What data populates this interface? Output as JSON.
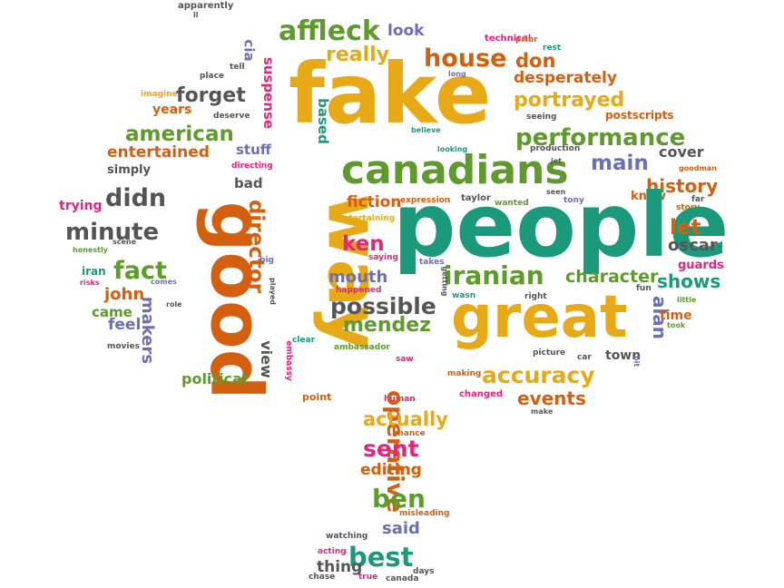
{
  "colors": {
    "yellow": "#e8a917",
    "orange": "#d4600f",
    "green": "#5e9b2c",
    "teal": "#1a9a7a",
    "gray": "#555555",
    "purple": "#6b6fb3",
    "pink": "#e0267d",
    "lightorange": "#f08a24"
  },
  "words": [
    {
      "text": "apparently",
      "color": "gray"
    },
    {
      "text": "ll",
      "color": "gray"
    },
    {
      "text": "affleck",
      "color": "green"
    },
    {
      "text": "look",
      "color": "purple"
    },
    {
      "text": "technical",
      "color": "pink"
    },
    {
      "text": "prior",
      "color": "orange"
    },
    {
      "text": "rest",
      "color": "teal"
    },
    {
      "text": "cia",
      "color": "purple"
    },
    {
      "text": "fake",
      "color": "yellow"
    },
    {
      "text": "really",
      "color": "yellow"
    },
    {
      "text": "house",
      "color": "orange"
    },
    {
      "text": "don",
      "color": "orange"
    },
    {
      "text": "desperately",
      "color": "orange"
    },
    {
      "text": "place",
      "color": "gray"
    },
    {
      "text": "tell",
      "color": "gray"
    },
    {
      "text": "long",
      "color": "purple"
    },
    {
      "text": "imagine",
      "color": "yellow"
    },
    {
      "text": "forget",
      "color": "gray"
    },
    {
      "text": "suspense",
      "color": "pink"
    },
    {
      "text": "portrayed",
      "color": "yellow"
    },
    {
      "text": "years",
      "color": "orange"
    },
    {
      "text": "deserve",
      "color": "gray"
    },
    {
      "text": "seeing",
      "color": "gray"
    },
    {
      "text": "postscripts",
      "color": "orange"
    },
    {
      "text": "american",
      "color": "green"
    },
    {
      "text": "performance",
      "color": "green"
    },
    {
      "text": "based",
      "color": "teal"
    },
    {
      "text": "stuff",
      "color": "purple"
    },
    {
      "text": "believe",
      "color": "teal"
    },
    {
      "text": "looking",
      "color": "teal"
    },
    {
      "text": "production",
      "color": "gray"
    },
    {
      "text": "cover",
      "color": "gray"
    },
    {
      "text": "entertained",
      "color": "orange"
    },
    {
      "text": "canadians",
      "color": "green"
    },
    {
      "text": "main",
      "color": "purple"
    },
    {
      "text": "simply",
      "color": "gray"
    },
    {
      "text": "directing",
      "color": "pink"
    },
    {
      "text": "jet",
      "color": "gray"
    },
    {
      "text": "goodman",
      "color": "orange"
    },
    {
      "text": "good",
      "color": "orange"
    },
    {
      "text": "way",
      "color": "yellow"
    },
    {
      "text": "bad",
      "color": "gray"
    },
    {
      "text": "history",
      "color": "orange"
    },
    {
      "text": "didn",
      "color": "gray"
    },
    {
      "text": "fiction",
      "color": "orange"
    },
    {
      "text": "expression",
      "color": "orange"
    },
    {
      "text": "taylor",
      "color": "gray"
    },
    {
      "text": "wanted",
      "color": "green"
    },
    {
      "text": "seen",
      "color": "gray"
    },
    {
      "text": "tony",
      "color": "purple"
    },
    {
      "text": "know",
      "color": "orange"
    },
    {
      "text": "far",
      "color": "gray"
    },
    {
      "text": "trying",
      "color": "pink"
    },
    {
      "text": "story",
      "color": "orange"
    },
    {
      "text": "director",
      "color": "orange"
    },
    {
      "text": "entertaining",
      "color": "yellow"
    },
    {
      "text": "minute",
      "color": "gray"
    },
    {
      "text": "people",
      "color": "teal"
    },
    {
      "text": "let",
      "color": "orange"
    },
    {
      "text": "oscar",
      "color": "gray"
    },
    {
      "text": "honestly",
      "color": "green"
    },
    {
      "text": "scene",
      "color": "gray"
    },
    {
      "text": "ken",
      "color": "pink"
    },
    {
      "text": "saying",
      "color": "pink"
    },
    {
      "text": "iran",
      "color": "teal"
    },
    {
      "text": "big",
      "color": "purple"
    },
    {
      "text": "fact",
      "color": "green"
    },
    {
      "text": "takes",
      "color": "purple"
    },
    {
      "text": "guards",
      "color": "pink"
    },
    {
      "text": "risks",
      "color": "pink"
    },
    {
      "text": "comes",
      "color": "purple"
    },
    {
      "text": "iranian",
      "color": "green"
    },
    {
      "text": "character",
      "color": "green"
    },
    {
      "text": "shows",
      "color": "teal"
    },
    {
      "text": "mouth",
      "color": "purple"
    },
    {
      "text": "getting",
      "color": "gray"
    },
    {
      "text": "john",
      "color": "orange"
    },
    {
      "text": "fun",
      "color": "gray"
    },
    {
      "text": "happened",
      "color": "pink"
    },
    {
      "text": "wasn",
      "color": "teal"
    },
    {
      "text": "right",
      "color": "gray"
    },
    {
      "text": "played",
      "color": "gray"
    },
    {
      "text": "little",
      "color": "green"
    },
    {
      "text": "role",
      "color": "gray"
    },
    {
      "text": "possible",
      "color": "gray"
    },
    {
      "text": "came",
      "color": "green"
    },
    {
      "text": "alan",
      "color": "purple"
    },
    {
      "text": "time",
      "color": "orange"
    },
    {
      "text": "great",
      "color": "yellow"
    },
    {
      "text": "mendez",
      "color": "green"
    },
    {
      "text": "took",
      "color": "green"
    },
    {
      "text": "feel",
      "color": "purple"
    },
    {
      "text": "makers",
      "color": "purple"
    },
    {
      "text": "clear",
      "color": "teal"
    },
    {
      "text": "ambassador",
      "color": "green"
    },
    {
      "text": "movies",
      "color": "gray"
    },
    {
      "text": "view",
      "color": "gray"
    },
    {
      "text": "picture",
      "color": "gray"
    },
    {
      "text": "car",
      "color": "gray"
    },
    {
      "text": "town",
      "color": "gray"
    },
    {
      "text": "embassy",
      "color": "pink"
    },
    {
      "text": "saw",
      "color": "pink"
    },
    {
      "text": "bit",
      "color": "purple"
    },
    {
      "text": "political",
      "color": "green"
    },
    {
      "text": "accuracy",
      "color": "yellow"
    },
    {
      "text": "making",
      "color": "orange"
    },
    {
      "text": "point",
      "color": "orange"
    },
    {
      "text": "changed",
      "color": "pink"
    },
    {
      "text": "events",
      "color": "orange"
    },
    {
      "text": "human",
      "color": "pink"
    },
    {
      "text": "make",
      "color": "gray"
    },
    {
      "text": "operative",
      "color": "orange"
    },
    {
      "text": "actually",
      "color": "yellow"
    },
    {
      "text": "chance",
      "color": "orange"
    },
    {
      "text": "sent",
      "color": "pink"
    },
    {
      "text": "editing",
      "color": "orange"
    },
    {
      "text": "ben",
      "color": "green"
    },
    {
      "text": "misleading",
      "color": "orange"
    },
    {
      "text": "said",
      "color": "purple"
    },
    {
      "text": "watching",
      "color": "gray"
    },
    {
      "text": "best",
      "color": "teal"
    },
    {
      "text": "acting",
      "color": "pink"
    },
    {
      "text": "thing",
      "color": "gray"
    },
    {
      "text": "days",
      "color": "gray"
    },
    {
      "text": "chase",
      "color": "gray"
    },
    {
      "text": "true",
      "color": "pink"
    },
    {
      "text": "canada",
      "color": "gray"
    }
  ]
}
